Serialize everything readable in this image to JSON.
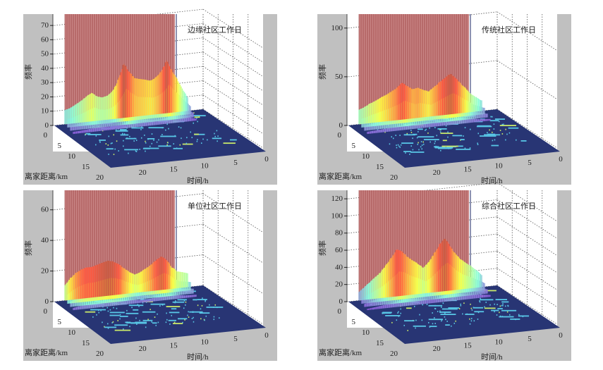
{
  "chart_data": [
    {
      "type": "surface",
      "title": "边缘社区工作日",
      "xlabel": "时间/h",
      "ylabel": "离家距离/km",
      "zlabel": "频率",
      "xlim": [
        0,
        24
      ],
      "ylim": [
        0,
        20
      ],
      "zlim": [
        0,
        75
      ],
      "xticks": [
        "0",
        "5",
        "10",
        "15",
        "20"
      ],
      "yticks": [
        "0",
        "5",
        "10",
        "15",
        "20"
      ],
      "zticks": [
        "0",
        "10",
        "20",
        "30",
        "40",
        "50",
        "60",
        "70"
      ],
      "near_home_profile": [
        10,
        11,
        13,
        15,
        18,
        20,
        17,
        16,
        17,
        20,
        28,
        38,
        32,
        27,
        26,
        25,
        24,
        26,
        30,
        37,
        29,
        22,
        15,
        9
      ]
    },
    {
      "type": "surface",
      "title": "传统社区工作日",
      "xlabel": "时间/h",
      "ylabel": "离家距离/km",
      "zlabel": "频率",
      "xlim": [
        0,
        24
      ],
      "ylim": [
        0,
        20
      ],
      "zlim": [
        0,
        110
      ],
      "xticks": [
        "0",
        "5",
        "10",
        "15",
        "20"
      ],
      "yticks": [
        "0",
        "5",
        "10",
        "15",
        "20"
      ],
      "zticks": [
        "0",
        "50",
        "100"
      ],
      "near_home_profile": [
        15,
        17,
        20,
        22,
        25,
        27,
        30,
        33,
        38,
        34,
        30,
        31,
        28,
        26,
        30,
        34,
        38,
        42,
        37,
        30,
        24,
        18,
        14,
        10
      ]
    },
    {
      "type": "surface",
      "title": "单位社区工作日",
      "xlabel": "时间/h",
      "ylabel": "离家距离/km",
      "zlabel": "频率",
      "xlim": [
        0,
        24
      ],
      "ylim": [
        0,
        20
      ],
      "zlim": [
        0,
        70
      ],
      "xticks": [
        "0",
        "5",
        "10",
        "15",
        "20"
      ],
      "yticks": [
        "0",
        "5",
        "10",
        "15",
        "20"
      ],
      "zticks": [
        "0",
        "20",
        "40",
        "60"
      ],
      "near_home_profile": [
        10,
        14,
        17,
        19,
        20,
        20,
        21,
        22,
        23,
        22,
        20,
        17,
        14,
        12,
        13,
        15,
        17,
        20,
        22,
        19,
        14,
        11,
        10,
        9
      ]
    },
    {
      "type": "surface",
      "title": "综合社区工作日",
      "xlabel": "时间/h",
      "ylabel": "离家距离/km",
      "zlabel": "频率",
      "xlim": [
        0,
        24
      ],
      "ylim": [
        0,
        20
      ],
      "zlim": [
        0,
        125
      ],
      "xticks": [
        "0",
        "5",
        "10",
        "15",
        "20"
      ],
      "yticks": [
        "0",
        "5",
        "10",
        "15",
        "20"
      ],
      "zticks": [
        "0",
        "20",
        "40",
        "60",
        "80",
        "100",
        "120"
      ],
      "near_home_profile": [
        10,
        15,
        20,
        25,
        30,
        38,
        45,
        55,
        52,
        45,
        40,
        35,
        30,
        36,
        45,
        55,
        62,
        52,
        42,
        35,
        30,
        25,
        20,
        14
      ]
    }
  ],
  "colors": {
    "panel_background": "#c0c0c0",
    "floor": "#283574",
    "wall": "#c98585",
    "wall_line": "#8e2a2a",
    "scatter": "#58c6e6"
  }
}
